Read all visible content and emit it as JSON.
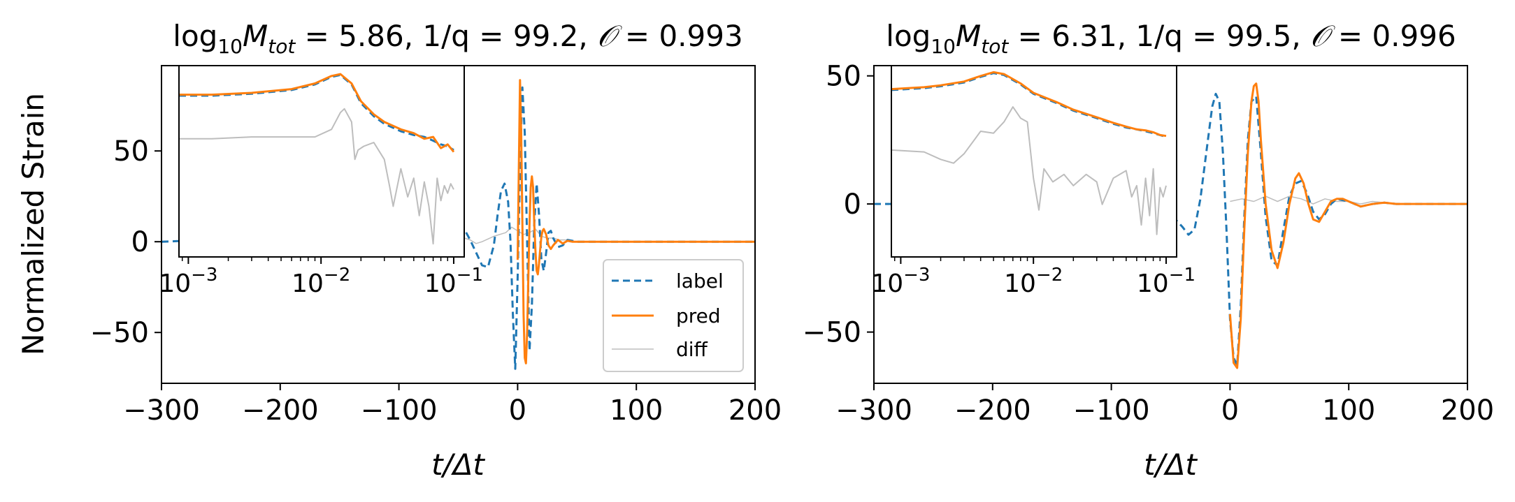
{
  "figure": {
    "ylabel": "Normalized Strain",
    "xlabel": "t/Δt",
    "legend": {
      "placement": "lower-right of left panel",
      "entries": [
        {
          "label": "label",
          "color": "#1f77b4",
          "style": "dashed"
        },
        {
          "label": "pred",
          "color": "#ff7f0e",
          "style": "solid"
        },
        {
          "label": "diff",
          "color": "#bdbdbd",
          "style": "solid"
        }
      ]
    }
  },
  "chart_data": [
    {
      "type": "line",
      "title_parts": {
        "log": "log",
        "sub": "10",
        "m": "M",
        "msub": "tot",
        "rest": " = 5.86, 1/q = 99.2, ",
        "o": "𝒪",
        "oval": " = 0.993"
      },
      "xlabel": "t/Δt",
      "ylabel": "Normalized Strain",
      "xlim": [
        -300,
        200
      ],
      "ylim": [
        -78,
        97
      ],
      "xticks": [
        -300,
        -200,
        -100,
        0,
        100,
        200
      ],
      "xtick_labels": [
        "−300",
        "−200",
        "−100",
        "0",
        "100",
        "200"
      ],
      "yticks": [
        -50,
        0,
        50
      ],
      "ytick_labels": [
        "−50",
        "0",
        "50"
      ],
      "series": [
        {
          "name": "label",
          "color": "#1f77b4",
          "dash": true,
          "x": [
            -300,
            -260,
            -220,
            -180,
            -150,
            -120,
            -100,
            -80,
            -70,
            -60,
            -50,
            -45,
            -40,
            -35,
            -30,
            -25,
            -20,
            -17,
            -14,
            -11,
            -8,
            -6,
            -4,
            -2,
            0,
            2,
            4,
            6,
            8,
            10,
            12,
            14,
            16,
            18,
            20,
            22,
            24,
            26,
            28,
            30,
            34,
            38,
            42,
            46,
            50,
            60,
            80,
            100,
            140,
            200
          ],
          "y": [
            0,
            1,
            2,
            3,
            4,
            6,
            8,
            11,
            13,
            14,
            11,
            7,
            1,
            -6,
            -13,
            -14,
            -2,
            14,
            28,
            32,
            22,
            0,
            -40,
            -70,
            -20,
            40,
            85,
            60,
            0,
            -60,
            -35,
            10,
            32,
            15,
            -10,
            -16,
            -6,
            5,
            6,
            2,
            -3,
            -2,
            1,
            0.5,
            0,
            0,
            0,
            0,
            0,
            0
          ]
        },
        {
          "name": "pred",
          "color": "#ff7f0e",
          "dash": false,
          "x": [
            0,
            1,
            2,
            3,
            4,
            5,
            6,
            7,
            8,
            9,
            10,
            11,
            12,
            13,
            14,
            15,
            16,
            17,
            18,
            19,
            20,
            21,
            22,
            24,
            26,
            28,
            30,
            34,
            38,
            42,
            46,
            50,
            60,
            80,
            100,
            140,
            200
          ],
          "y": [
            -10,
            40,
            89,
            60,
            10,
            -40,
            -64,
            -67,
            -50,
            -20,
            10,
            30,
            36,
            30,
            10,
            -5,
            -16,
            -18,
            -12,
            -4,
            3,
            6,
            7,
            4,
            -2,
            -4,
            -2,
            1,
            -1,
            0.5,
            0,
            0,
            0,
            0,
            0,
            0,
            0
          ]
        },
        {
          "name": "diff",
          "color": "#bdbdbd",
          "dash": false,
          "x": [
            -60,
            -50,
            -45,
            -40,
            -35,
            -30,
            -20,
            -10,
            -5,
            0,
            5,
            10,
            15,
            20,
            25,
            30,
            35,
            40,
            45,
            50,
            60
          ],
          "y": [
            5,
            3,
            2,
            1,
            -1,
            0,
            3,
            5,
            8,
            6,
            4,
            5,
            7,
            3,
            2,
            2,
            1,
            1,
            0,
            0,
            0
          ]
        }
      ],
      "inset": {
        "xscale": "log",
        "xlim": [
          0.00085,
          0.12
        ],
        "ylim": [
          -0.02,
          1.0
        ],
        "xticks": [
          0.001,
          0.01,
          0.1
        ],
        "xtick_labels": [
          "−3",
          "−2",
          "−1"
        ],
        "series": [
          {
            "name": "label",
            "color": "#1f77b4",
            "dash": true,
            "x": [
              0.00085,
              0.0015,
              0.003,
              0.006,
              0.009,
              0.012,
              0.014,
              0.017,
              0.02,
              0.025,
              0.03,
              0.04,
              0.05,
              0.06,
              0.07,
              0.08,
              0.09,
              0.1
            ],
            "y": [
              0.84,
              0.84,
              0.85,
              0.87,
              0.9,
              0.94,
              0.95,
              0.9,
              0.8,
              0.73,
              0.69,
              0.65,
              0.63,
              0.62,
              0.6,
              0.58,
              0.57,
              0.55
            ]
          },
          {
            "name": "pred",
            "color": "#ff7f0e",
            "dash": false,
            "x": [
              0.00085,
              0.0015,
              0.003,
              0.006,
              0.009,
              0.012,
              0.014,
              0.017,
              0.02,
              0.025,
              0.03,
              0.04,
              0.05,
              0.06,
              0.07,
              0.08,
              0.09,
              0.1
            ],
            "y": [
              0.845,
              0.845,
              0.855,
              0.875,
              0.905,
              0.945,
              0.955,
              0.905,
              0.81,
              0.74,
              0.7,
              0.66,
              0.64,
              0.61,
              0.62,
              0.56,
              0.58,
              0.54
            ]
          },
          {
            "name": "diff",
            "color": "#bdbdbd",
            "dash": false,
            "x": [
              0.00085,
              0.0015,
              0.003,
              0.006,
              0.009,
              0.012,
              0.014,
              0.015,
              0.017,
              0.018,
              0.019,
              0.021,
              0.025,
              0.03,
              0.033,
              0.035,
              0.04,
              0.045,
              0.05,
              0.055,
              0.06,
              0.065,
              0.07,
              0.075,
              0.08,
              0.085,
              0.09,
              0.095,
              0.1
            ],
            "y": [
              0.61,
              0.61,
              0.62,
              0.62,
              0.62,
              0.66,
              0.75,
              0.77,
              0.7,
              0.5,
              0.55,
              0.57,
              0.59,
              0.5,
              0.35,
              0.25,
              0.45,
              0.3,
              0.4,
              0.2,
              0.38,
              0.25,
              0.05,
              0.4,
              0.28,
              0.36,
              0.32,
              0.37,
              0.34
            ]
          }
        ]
      }
    },
    {
      "type": "line",
      "title_parts": {
        "log": "log",
        "sub": "10",
        "m": "M",
        "msub": "tot",
        "rest": " = 6.31, 1/q = 99.5, ",
        "o": "𝒪",
        "oval": " = 0.996"
      },
      "xlabel": "t/Δt",
      "ylabel": "",
      "xlim": [
        -300,
        200
      ],
      "ylim": [
        -70,
        54
      ],
      "xticks": [
        -300,
        -200,
        -100,
        0,
        100,
        200
      ],
      "xtick_labels": [
        "−300",
        "−200",
        "−100",
        "0",
        "100",
        "200"
      ],
      "yticks": [
        -50,
        0,
        50
      ],
      "ytick_labels": [
        "−50",
        "0",
        "50"
      ],
      "series": [
        {
          "name": "label",
          "color": "#1f77b4",
          "dash": true,
          "x": [
            -300,
            -250,
            -200,
            -150,
            -100,
            -80,
            -60,
            -50,
            -40,
            -35,
            -30,
            -25,
            -20,
            -15,
            -12,
            -9,
            -6,
            -3,
            0,
            3,
            6,
            9,
            12,
            15,
            18,
            22,
            26,
            30,
            35,
            40,
            45,
            50,
            55,
            60,
            65,
            70,
            75,
            80,
            85,
            90,
            100,
            110,
            120,
            130,
            140,
            160,
            200
          ],
          "y": [
            0,
            0,
            0,
            0,
            0,
            0,
            -1,
            -4,
            -9,
            -12,
            -10,
            2,
            20,
            38,
            43,
            40,
            20,
            -10,
            -45,
            -60,
            -63,
            -40,
            -5,
            25,
            40,
            42,
            20,
            -5,
            -22,
            -24,
            -10,
            3,
            8,
            9,
            4,
            -3,
            -6,
            -4,
            0,
            2,
            1,
            -1,
            0,
            0.5,
            0,
            0,
            0
          ]
        },
        {
          "name": "pred",
          "color": "#ff7f0e",
          "dash": false,
          "x": [
            0,
            3,
            6,
            9,
            12,
            15,
            18,
            20,
            22,
            24,
            26,
            30,
            35,
            40,
            45,
            50,
            55,
            58,
            62,
            66,
            70,
            75,
            80,
            85,
            90,
            95,
            100,
            110,
            120,
            130,
            140,
            160,
            200
          ],
          "y": [
            -43,
            -62,
            -64,
            -45,
            -10,
            20,
            40,
            46,
            47,
            40,
            25,
            0,
            -18,
            -25,
            -15,
            0,
            10,
            12,
            8,
            0,
            -6,
            -7,
            -3,
            1,
            2,
            2,
            1,
            -1,
            0,
            0.5,
            0,
            0,
            0
          ]
        },
        {
          "name": "diff",
          "color": "#bdbdbd",
          "dash": false,
          "x": [
            0,
            10,
            20,
            30,
            40,
            50,
            60,
            70,
            80,
            90,
            100,
            110,
            120,
            140,
            160,
            200
          ],
          "y": [
            1,
            2,
            1,
            3,
            1,
            3,
            2,
            0,
            2,
            1,
            1,
            0,
            1,
            0,
            0,
            0
          ]
        }
      ],
      "inset": {
        "xscale": "log",
        "xlim": [
          0.00085,
          0.12
        ],
        "ylim": [
          -0.02,
          1.0
        ],
        "xticks": [
          0.001,
          0.01,
          0.1
        ],
        "xtick_labels": [
          "−3",
          "−2",
          "−1"
        ],
        "series": [
          {
            "name": "label",
            "color": "#1f77b4",
            "dash": true,
            "x": [
              0.00085,
              0.0015,
              0.002,
              0.003,
              0.004,
              0.005,
              0.006,
              0.008,
              0.01,
              0.015,
              0.02,
              0.03,
              0.04,
              0.05,
              0.06,
              0.07,
              0.08,
              0.09,
              0.1
            ],
            "y": [
              0.87,
              0.88,
              0.89,
              0.91,
              0.94,
              0.96,
              0.95,
              0.9,
              0.85,
              0.8,
              0.76,
              0.72,
              0.69,
              0.67,
              0.66,
              0.65,
              0.64,
              0.63,
              0.62
            ]
          },
          {
            "name": "pred",
            "color": "#ff7f0e",
            "dash": false,
            "x": [
              0.00085,
              0.0015,
              0.002,
              0.003,
              0.004,
              0.005,
              0.006,
              0.008,
              0.01,
              0.015,
              0.02,
              0.03,
              0.04,
              0.05,
              0.06,
              0.07,
              0.08,
              0.09,
              0.1
            ],
            "y": [
              0.875,
              0.885,
              0.895,
              0.915,
              0.945,
              0.965,
              0.955,
              0.905,
              0.855,
              0.805,
              0.765,
              0.725,
              0.695,
              0.675,
              0.66,
              0.655,
              0.645,
              0.63,
              0.625
            ]
          },
          {
            "name": "diff",
            "color": "#bdbdbd",
            "dash": false,
            "x": [
              0.00085,
              0.0015,
              0.002,
              0.0025,
              0.003,
              0.004,
              0.005,
              0.006,
              0.007,
              0.008,
              0.009,
              0.01,
              0.011,
              0.012,
              0.014,
              0.017,
              0.02,
              0.025,
              0.03,
              0.033,
              0.04,
              0.05,
              0.055,
              0.06,
              0.065,
              0.07,
              0.075,
              0.08,
              0.085,
              0.09,
              0.095,
              0.1
            ],
            "y": [
              0.55,
              0.54,
              0.5,
              0.48,
              0.53,
              0.65,
              0.64,
              0.7,
              0.78,
              0.72,
              0.7,
              0.4,
              0.23,
              0.45,
              0.38,
              0.42,
              0.36,
              0.42,
              0.38,
              0.26,
              0.4,
              0.44,
              0.3,
              0.36,
              0.15,
              0.4,
              0.2,
              0.45,
              0.1,
              0.35,
              0.3,
              0.36
            ]
          }
        ]
      }
    }
  ]
}
